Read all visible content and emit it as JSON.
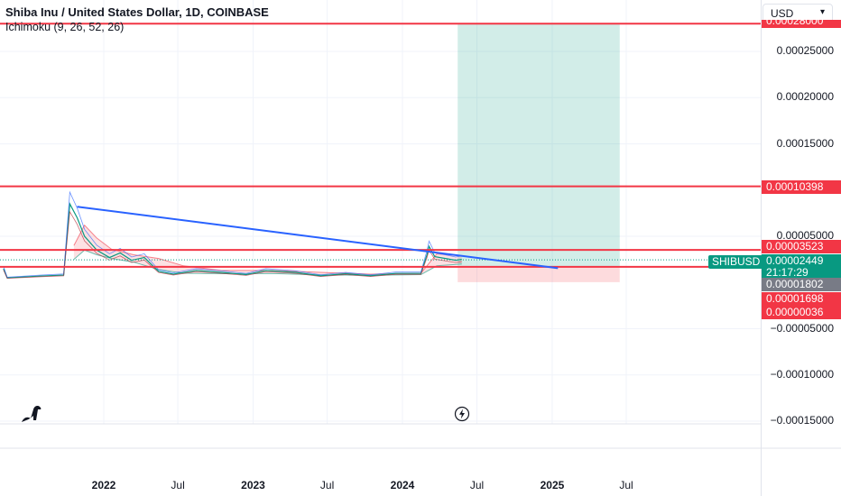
{
  "header": {
    "title": "Shiba Inu / United States Dollar, 1D, COINBASE",
    "indicator": "Ichimoku (9, 26, 52, 26)"
  },
  "currency_button": "USD",
  "symbol_tag": "SHIBUSD",
  "price_tags": {
    "top_hidden": "0.00028000",
    "level1": "0.00010398",
    "level2": "0.00003523",
    "current": "0.00002449",
    "countdown": "21:17:29",
    "gray": "0.00001802",
    "level3": "0.00001698",
    "level4": "0.00000036"
  },
  "chart_data": {
    "type": "line",
    "title": "Shiba Inu / United States Dollar, 1D, COINBASE",
    "xlabel": "",
    "ylabel": "",
    "y_ticks": [
      "0.00025000",
      "0.00020000",
      "0.00015000",
      "0.00005000",
      "−0.00005000",
      "−0.00010000",
      "−0.00015000"
    ],
    "y_tick_values": [
      0.00025,
      0.0002,
      0.00015,
      5e-05,
      -5e-05,
      -0.0001,
      -0.00015
    ],
    "x_ticks": [
      {
        "label": "2022",
        "bold": true,
        "date": "2022-01-01"
      },
      {
        "label": "Jul",
        "bold": false,
        "date": "2022-07-01"
      },
      {
        "label": "2023",
        "bold": true,
        "date": "2023-01-01"
      },
      {
        "label": "Jul",
        "bold": false,
        "date": "2023-07-01"
      },
      {
        "label": "2024",
        "bold": true,
        "date": "2024-01-01"
      },
      {
        "label": "Jul",
        "bold": false,
        "date": "2024-07-01"
      },
      {
        "label": "2025",
        "bold": true,
        "date": "2025-01-01"
      },
      {
        "label": "Jul",
        "bold": false,
        "date": "2025-07-01"
      }
    ],
    "ylim": [
      -0.00015,
      0.00028
    ],
    "grid": true,
    "price_series": [
      {
        "date": "2021-05-01",
        "value": 1.5e-05
      },
      {
        "date": "2021-05-10",
        "value": 5e-06
      },
      {
        "date": "2021-08-01",
        "value": 7e-06
      },
      {
        "date": "2021-09-25",
        "value": 8e-06
      },
      {
        "date": "2021-10-10",
        "value": 8.5e-05
      },
      {
        "date": "2021-10-28",
        "value": 7e-05
      },
      {
        "date": "2021-11-15",
        "value": 5e-05
      },
      {
        "date": "2021-12-15",
        "value": 3.5e-05
      },
      {
        "date": "2022-01-15",
        "value": 2.7e-05
      },
      {
        "date": "2022-02-10",
        "value": 3.2e-05
      },
      {
        "date": "2022-03-10",
        "value": 2.4e-05
      },
      {
        "date": "2022-04-10",
        "value": 2.7e-05
      },
      {
        "date": "2022-05-15",
        "value": 1.2e-05
      },
      {
        "date": "2022-06-20",
        "value": 9e-06
      },
      {
        "date": "2022-08-15",
        "value": 1.3e-05
      },
      {
        "date": "2022-10-15",
        "value": 1.1e-05
      },
      {
        "date": "2022-12-15",
        "value": 8.5e-06
      },
      {
        "date": "2023-02-01",
        "value": 1.3e-05
      },
      {
        "date": "2023-04-15",
        "value": 1.1e-05
      },
      {
        "date": "2023-06-15",
        "value": 7.2e-06
      },
      {
        "date": "2023-08-15",
        "value": 9.5e-06
      },
      {
        "date": "2023-10-15",
        "value": 7.2e-06
      },
      {
        "date": "2023-12-15",
        "value": 9.8e-06
      },
      {
        "date": "2024-02-15",
        "value": 9.8e-06
      },
      {
        "date": "2024-03-01",
        "value": 3e-05
      },
      {
        "date": "2024-03-06",
        "value": 3.9e-05
      },
      {
        "date": "2024-03-20",
        "value": 2.8e-05
      },
      {
        "date": "2024-04-15",
        "value": 2.6e-05
      },
      {
        "date": "2024-05-10",
        "value": 2.4e-05
      },
      {
        "date": "2024-05-25",
        "value": 2.5e-05
      }
    ],
    "cloud_upper": [
      {
        "date": "2021-10-20",
        "value": 4e-05
      },
      {
        "date": "2021-11-15",
        "value": 6.2e-05
      },
      {
        "date": "2021-12-15",
        "value": 4.8e-05
      },
      {
        "date": "2022-01-20",
        "value": 3.6e-05
      },
      {
        "date": "2022-03-15",
        "value": 3e-05
      },
      {
        "date": "2022-05-15",
        "value": 2.6e-05
      },
      {
        "date": "2022-07-15",
        "value": 1.8e-05
      },
      {
        "date": "2022-10-15",
        "value": 1.3e-05
      },
      {
        "date": "2023-02-15",
        "value": 1.3e-05
      },
      {
        "date": "2023-06-15",
        "value": 1.1e-05
      },
      {
        "date": "2023-10-15",
        "value": 9e-06
      },
      {
        "date": "2024-02-15",
        "value": 1e-05
      },
      {
        "date": "2024-03-25",
        "value": 3.1e-05
      },
      {
        "date": "2024-05-25",
        "value": 2.9e-05
      }
    ],
    "cloud_lower": [
      {
        "date": "2021-10-20",
        "value": 2.5e-05
      },
      {
        "date": "2021-11-15",
        "value": 3.5e-05
      },
      {
        "date": "2021-12-15",
        "value": 3e-05
      },
      {
        "date": "2022-01-20",
        "value": 2.6e-05
      },
      {
        "date": "2022-03-15",
        "value": 2.2e-05
      },
      {
        "date": "2022-05-15",
        "value": 1.4e-05
      },
      {
        "date": "2022-07-15",
        "value": 1e-05
      },
      {
        "date": "2022-10-15",
        "value": 9.5e-06
      },
      {
        "date": "2023-02-15",
        "value": 9.8e-06
      },
      {
        "date": "2023-06-15",
        "value": 8.2e-06
      },
      {
        "date": "2023-10-15",
        "value": 7.8e-06
      },
      {
        "date": "2024-02-15",
        "value": 8.5e-06
      },
      {
        "date": "2024-03-25",
        "value": 1.8e-05
      },
      {
        "date": "2024-05-25",
        "value": 2e-05
      }
    ],
    "trendline": {
      "start_date": "2021-10-28",
      "start": 8.2e-05,
      "end_date": "2025-01-15",
      "end": 1.55e-05
    },
    "horizontal_levels": [
      0.00028,
      0.00010398,
      3.523e-05,
      1.698e-05
    ],
    "position_box": {
      "start_date": "2024-05-15",
      "end_date": "2025-06-15",
      "entry": 1.698e-05,
      "target": 0.00028,
      "stop": 3.6e-07
    },
    "current_price": 2.449e-05
  },
  "colors": {
    "red": "#f23645",
    "green": "#089981",
    "blue": "#2962ff",
    "gray_tag": "#787b86",
    "grid": "#f0f3fa",
    "profit_zone": "rgba(8,153,129,0.18)",
    "loss_zone": "rgba(242,54,69,0.18)"
  }
}
